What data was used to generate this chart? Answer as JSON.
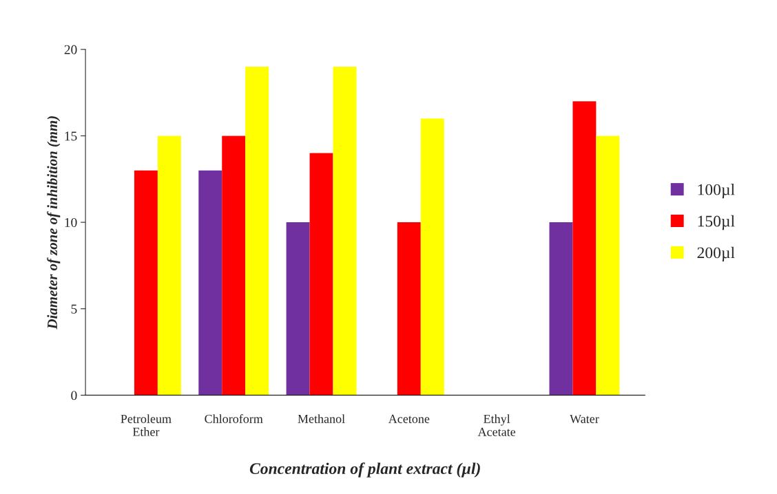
{
  "chart_data": {
    "type": "bar",
    "xlabel": "Concentration of plant extract (µl)",
    "ylabel": "Diameter of zone of inhibition (mm)",
    "categories": [
      "Petroleum\nEther",
      "Chloroform",
      "Methanol",
      "Acetone",
      "Ethyl\nAcetate",
      "Water"
    ],
    "series": [
      {
        "name": "100µl",
        "color": "#7030a0",
        "values": [
          0,
          13,
          10,
          0,
          0,
          10
        ]
      },
      {
        "name": "150µl",
        "color": "#ff0000",
        "values": [
          13,
          15,
          14,
          10,
          0,
          17
        ]
      },
      {
        "name": "200µl",
        "color": "#ffff00",
        "values": [
          15,
          19,
          19,
          16,
          0,
          15
        ]
      }
    ],
    "ylim": [
      0,
      20
    ],
    "yticks": [
      0,
      5,
      10,
      15,
      20
    ],
    "grid": false,
    "legend": "right"
  }
}
